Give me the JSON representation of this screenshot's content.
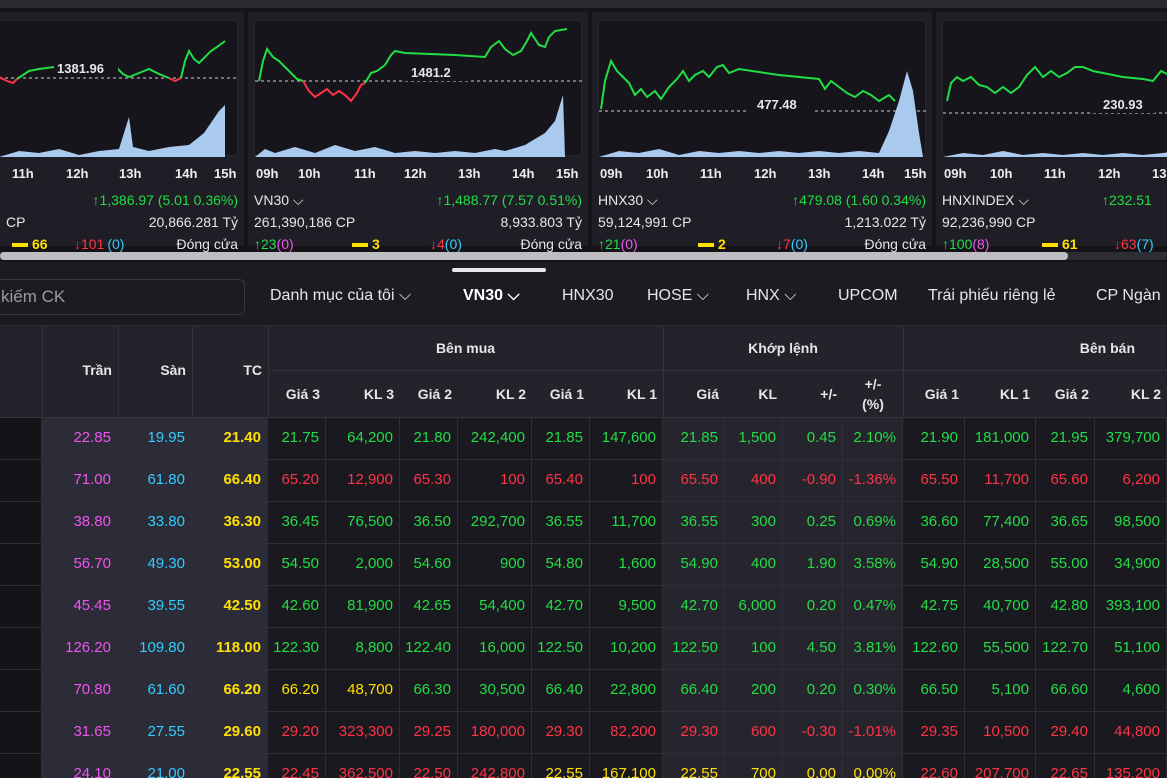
{
  "cards": [
    {
      "name": "",
      "price_label": "1381.96",
      "times": [
        "11h",
        "12h",
        "13h",
        "14h",
        "15h"
      ],
      "change": "↑1,386.97 (5.01 0.36%)",
      "volume": "CP",
      "value": "20,866.281 Tỷ",
      "ref_count": "66",
      "down_count": "↓101",
      "down_paren": "(0)",
      "status": "Đóng cửa"
    },
    {
      "name": "VN30 ⌵",
      "price_label": "1481.2",
      "times": [
        "09h",
        "10h",
        "11h",
        "12h",
        "13h",
        "14h",
        "15h"
      ],
      "change": "↑1,488.77 (7.57 0.51%)",
      "volume": "261,390,186 CP",
      "value": "8,933.803 Tỷ",
      "up_count": "↑23",
      "up_paren": "(0)",
      "ref_count": "3",
      "down_count": "↓4",
      "down_paren": "(0)",
      "status": "Đóng cửa"
    },
    {
      "name": "HNX30 ⌵",
      "price_label": "477.48",
      "times": [
        "09h",
        "10h",
        "11h",
        "12h",
        "13h",
        "14h",
        "15h"
      ],
      "change": "↑479.08 (1.60 0.34%)",
      "volume": "59,124,991 CP",
      "value": "1,213.022 Tỷ",
      "up_count": "↑21",
      "up_paren": "(0)",
      "ref_count": "2",
      "down_count": "↓7",
      "down_paren": "(0)",
      "status": "Đóng cửa"
    },
    {
      "name": "HNXINDEX ⌵",
      "price_label": "230.93",
      "times": [
        "09h",
        "10h",
        "11h",
        "12h",
        "13h"
      ],
      "change": "↑232.51",
      "volume": "92,236,990 CP",
      "value": "",
      "up_count": "↑100",
      "up_paren": "(8)",
      "ref_count": "61",
      "down_count": "↓63",
      "down_paren": "(7)",
      "status": ""
    }
  ],
  "toolbar": {
    "search_placeholder": "kiếm CK",
    "tabs": [
      "Danh mục của tôi ⌵",
      "VN30 ⌵",
      "HNX30",
      "HOSE ⌵",
      "HNX ⌵",
      "UPCOM",
      "Trái phiếu riêng lẻ",
      "CP Ngàn"
    ]
  },
  "table": {
    "headers": {
      "tran": "Trần",
      "san": "Sàn",
      "tc": "TC",
      "ben_mua": "Bên mua",
      "khop_lenh": "Khớp lệnh",
      "ben_ban": "Bên bán",
      "gia3": "Giá 3",
      "kl3": "KL 3",
      "gia2": "Giá 2",
      "kl2": "KL 2",
      "gia1": "Giá 1",
      "kl1": "KL 1",
      "gia": "Giá",
      "kl": "KL",
      "pm": "+/-",
      "pmpct_1": "+/-",
      "pmpct_2": "(%)",
      "s_gia1": "Giá 1",
      "s_kl1": "KL 1",
      "s_gia2": "Giá 2",
      "s_kl2": "KL 2"
    },
    "rows": [
      [
        "22.85",
        "19.95",
        "21.40",
        "21.75",
        "64,200",
        "21.80",
        "242,400",
        "21.85",
        "147,600",
        "21.85",
        "1,500",
        "0.45",
        "2.10%",
        "21.90",
        "181,000",
        "21.95",
        "379,700"
      ],
      [
        "71.00",
        "61.80",
        "66.40",
        "65.20",
        "12,900",
        "65.30",
        "100",
        "65.40",
        "100",
        "65.50",
        "400",
        "-0.90",
        "-1.36%",
        "65.50",
        "11,700",
        "65.60",
        "6,200"
      ],
      [
        "38.80",
        "33.80",
        "36.30",
        "36.45",
        "76,500",
        "36.50",
        "292,700",
        "36.55",
        "11,700",
        "36.55",
        "300",
        "0.25",
        "0.69%",
        "36.60",
        "77,400",
        "36.65",
        "98,500"
      ],
      [
        "56.70",
        "49.30",
        "53.00",
        "54.50",
        "2,000",
        "54.60",
        "900",
        "54.80",
        "1,600",
        "54.90",
        "400",
        "1.90",
        "3.58%",
        "54.90",
        "28,500",
        "55.00",
        "34,900"
      ],
      [
        "45.45",
        "39.55",
        "42.50",
        "42.60",
        "81,900",
        "42.65",
        "54,400",
        "42.70",
        "9,500",
        "42.70",
        "6,000",
        "0.20",
        "0.47%",
        "42.75",
        "40,700",
        "42.80",
        "393,100"
      ],
      [
        "126.20",
        "109.80",
        "118.00",
        "122.30",
        "8,800",
        "122.40",
        "16,000",
        "122.50",
        "10,200",
        "122.50",
        "100",
        "4.50",
        "3.81%",
        "122.60",
        "55,500",
        "122.70",
        "51,100"
      ],
      [
        "70.80",
        "61.60",
        "66.20",
        "66.20",
        "48,700",
        "66.30",
        "30,500",
        "66.40",
        "22,800",
        "66.40",
        "200",
        "0.20",
        "0.30%",
        "66.50",
        "5,100",
        "66.60",
        "4,600"
      ],
      [
        "31.65",
        "27.55",
        "29.60",
        "29.20",
        "323,300",
        "29.25",
        "180,000",
        "29.30",
        "82,200",
        "29.30",
        "600",
        "-0.30",
        "-1.01%",
        "29.35",
        "10,500",
        "29.40",
        "44,800"
      ],
      [
        "24.10",
        "21.00",
        "22.55",
        "22.45",
        "362,500",
        "22.50",
        "242,800",
        "22.55",
        "167,100",
        "22.55",
        "700",
        "0.00",
        "0.00%",
        "22.60",
        "207,700",
        "22.65",
        "135,200"
      ]
    ],
    "row_colors": [
      [
        "up",
        "up",
        "up",
        "up",
        "up",
        "up",
        "up",
        "up",
        "up",
        "up",
        "up",
        "up"
      ],
      [
        "down",
        "down",
        "down",
        "down",
        "down",
        "down",
        "down",
        "down",
        "down",
        "down",
        "down",
        "down"
      ],
      [
        "up",
        "up",
        "up",
        "up",
        "up",
        "up",
        "up",
        "up",
        "up",
        "up",
        "up",
        "up"
      ],
      [
        "up",
        "up",
        "up",
        "up",
        "up",
        "up",
        "up",
        "up",
        "up",
        "up",
        "up",
        "up"
      ],
      [
        "up",
        "up",
        "up",
        "up",
        "up",
        "up",
        "up",
        "up",
        "up",
        "up",
        "up",
        "up"
      ],
      [
        "up",
        "up",
        "up",
        "up",
        "up",
        "up",
        "up",
        "up",
        "up",
        "up",
        "up",
        "up"
      ],
      [
        "ref",
        "ref",
        "up",
        "up",
        "up",
        "up",
        "up",
        "up",
        "up",
        "up",
        "up",
        "up"
      ],
      [
        "down",
        "down",
        "down",
        "down",
        "down",
        "down",
        "down",
        "down",
        "down",
        "down",
        "down",
        "down"
      ],
      [
        "down",
        "down",
        "down",
        "down",
        "ref",
        "ref",
        "ref",
        "ref",
        "ref",
        "ref",
        "down",
        "down"
      ]
    ]
  }
}
